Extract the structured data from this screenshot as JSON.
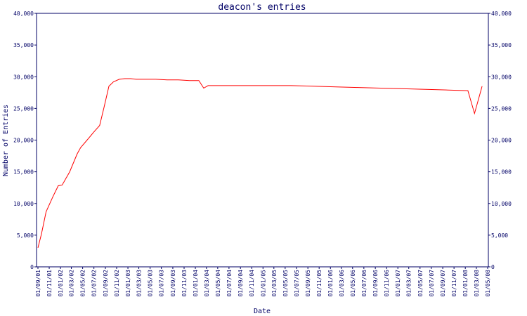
{
  "chart_data": {
    "type": "line",
    "title": "deacon's entries",
    "xlabel": "Date",
    "ylabel": "Number of Entries",
    "ylim": [
      0,
      40000
    ],
    "y_ticks": [
      0,
      5000,
      10000,
      15000,
      20000,
      25000,
      30000,
      35000,
      40000
    ],
    "y_tick_labels": [
      "0",
      "5,000",
      "10,000",
      "15,000",
      "20,000",
      "25,000",
      "30,000",
      "35,000",
      "40,000"
    ],
    "y_axis_right": true,
    "grid": false,
    "x_tick_labels": [
      "01/09/01",
      "01/11/01",
      "01/01/02",
      "01/03/02",
      "01/05/02",
      "01/07/02",
      "01/09/02",
      "01/11/02",
      "01/01/03",
      "01/03/03",
      "01/05/03",
      "01/07/03",
      "01/09/03",
      "01/11/03",
      "01/01/04",
      "01/03/04",
      "01/05/04",
      "01/07/04",
      "01/09/04",
      "01/11/04",
      "01/01/05",
      "01/03/05",
      "01/05/05",
      "01/07/05",
      "01/09/05",
      "01/11/05",
      "01/01/06",
      "01/03/06",
      "01/05/06",
      "01/07/06",
      "01/09/06",
      "01/11/06",
      "01/01/07",
      "01/03/07",
      "01/05/07",
      "01/07/07",
      "01/09/07",
      "01/11/07",
      "01/01/08",
      "01/03/08",
      "01/05/08"
    ],
    "series": [
      {
        "color": "#ff0000",
        "points": [
          [
            "2001-09-01",
            3000
          ],
          [
            "2001-09-20",
            5200
          ],
          [
            "2001-10-15",
            8700
          ],
          [
            "2001-11-20",
            11000
          ],
          [
            "2001-12-20",
            12800
          ],
          [
            "2002-01-10",
            12900
          ],
          [
            "2002-02-20",
            15000
          ],
          [
            "2002-04-01",
            17800
          ],
          [
            "2002-04-20",
            18800
          ],
          [
            "2002-05-25",
            20000
          ],
          [
            "2002-07-01",
            21300
          ],
          [
            "2002-08-01",
            22300
          ],
          [
            "2002-08-25",
            25200
          ],
          [
            "2002-09-20",
            28500
          ],
          [
            "2002-10-15",
            29200
          ],
          [
            "2002-11-15",
            29600
          ],
          [
            "2002-12-15",
            29700
          ],
          [
            "2003-01-15",
            29700
          ],
          [
            "2003-02-15",
            29600
          ],
          [
            "2003-04-01",
            29600
          ],
          [
            "2003-06-01",
            29600
          ],
          [
            "2003-08-01",
            29500
          ],
          [
            "2003-10-01",
            29500
          ],
          [
            "2003-12-01",
            29400
          ],
          [
            "2004-01-20",
            29400
          ],
          [
            "2004-02-15",
            28200
          ],
          [
            "2004-03-10",
            28600
          ],
          [
            "2004-06-01",
            28600
          ],
          [
            "2004-10-01",
            28600
          ],
          [
            "2005-02-01",
            28600
          ],
          [
            "2005-06-01",
            28600
          ],
          [
            "2005-10-01",
            28500
          ],
          [
            "2006-02-01",
            28400
          ],
          [
            "2006-06-01",
            28300
          ],
          [
            "2006-10-01",
            28200
          ],
          [
            "2007-02-01",
            28100
          ],
          [
            "2007-06-01",
            28000
          ],
          [
            "2007-10-01",
            27900
          ],
          [
            "2008-01-15",
            27800
          ],
          [
            "2008-02-20",
            24200
          ],
          [
            "2008-04-01",
            28500
          ]
        ]
      }
    ]
  }
}
